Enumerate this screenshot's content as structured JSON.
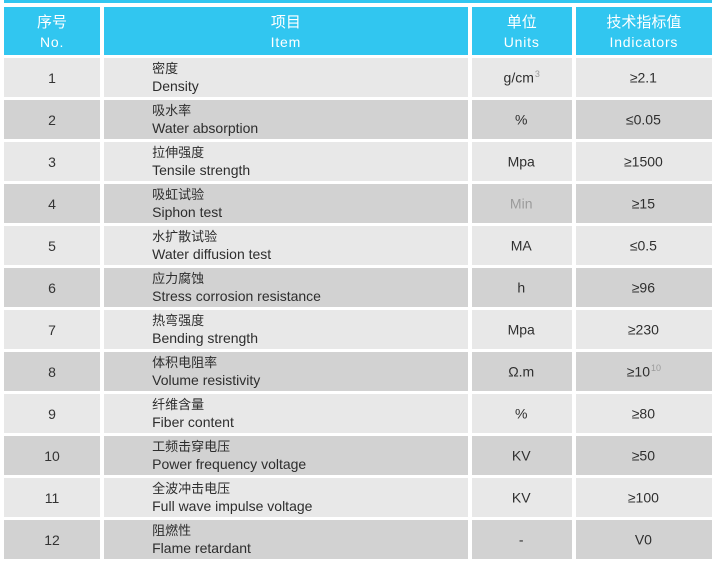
{
  "colors": {
    "header_bg": "#31c6f0",
    "row_light": "#e8e8e8",
    "row_dark": "#d2d2d2",
    "text": "#2d2d2d",
    "muted": "#9b9b9b"
  },
  "table": {
    "header": {
      "no_zh": "序号",
      "no_en": "No.",
      "item_zh": "项目",
      "item_en": "Item",
      "units_zh": "单位",
      "units_en": "Units",
      "indicators_zh": "技术指标值",
      "indicators_en": "Indicators"
    },
    "rows": [
      {
        "no": "1",
        "item_zh": "密度",
        "item_en": "Density",
        "unit": "g/cm",
        "unit_sup": "3",
        "unit_muted": false,
        "indicator": "≥2.1",
        "indicator_sup": ""
      },
      {
        "no": "2",
        "item_zh": "吸水率",
        "item_en": "Water absorption",
        "unit": "%",
        "unit_sup": "",
        "unit_muted": false,
        "indicator": "≤0.05",
        "indicator_sup": ""
      },
      {
        "no": "3",
        "item_zh": "拉伸强度",
        "item_en": "Tensile strength",
        "unit": "Mpa",
        "unit_sup": "",
        "unit_muted": false,
        "indicator": "≥1500",
        "indicator_sup": ""
      },
      {
        "no": "4",
        "item_zh": "吸虹试验",
        "item_en": "Siphon test",
        "unit": "Min",
        "unit_sup": "",
        "unit_muted": true,
        "indicator": "≥15",
        "indicator_sup": ""
      },
      {
        "no": "5",
        "item_zh": "水扩散试验",
        "item_en": "Water diffusion test",
        "unit": "MA",
        "unit_sup": "",
        "unit_muted": false,
        "indicator": "≤0.5",
        "indicator_sup": ""
      },
      {
        "no": "6",
        "item_zh": "应力腐蚀",
        "item_en": "Stress corrosion resistance",
        "unit": "h",
        "unit_sup": "",
        "unit_muted": false,
        "indicator": "≥96",
        "indicator_sup": ""
      },
      {
        "no": "7",
        "item_zh": "热弯强度",
        "item_en": "Bending strength",
        "unit": "Mpa",
        "unit_sup": "",
        "unit_muted": false,
        "indicator": "≥230",
        "indicator_sup": ""
      },
      {
        "no": "8",
        "item_zh": "体积电阻率",
        "item_en": "Volume resistivity",
        "unit": "Ω.m",
        "unit_sup": "",
        "unit_muted": false,
        "indicator": "≥10",
        "indicator_sup": "10"
      },
      {
        "no": "9",
        "item_zh": "纤维含量",
        "item_en": "Fiber content",
        "unit": "%",
        "unit_sup": "",
        "unit_muted": false,
        "indicator": "≥80",
        "indicator_sup": ""
      },
      {
        "no": "10",
        "item_zh": "工频击穿电压",
        "item_en": "Power frequency voltage",
        "unit": "KV",
        "unit_sup": "",
        "unit_muted": false,
        "indicator": "≥50",
        "indicator_sup": ""
      },
      {
        "no": "11",
        "item_zh": "全波冲击电压",
        "item_en": "Full wave impulse voltage",
        "unit": "KV",
        "unit_sup": "",
        "unit_muted": false,
        "indicator": "≥100",
        "indicator_sup": ""
      },
      {
        "no": "12",
        "item_zh": "阻燃性",
        "item_en": "Flame retardant",
        "unit": "-",
        "unit_sup": "",
        "unit_muted": false,
        "indicator": "V0",
        "indicator_sup": ""
      }
    ]
  }
}
